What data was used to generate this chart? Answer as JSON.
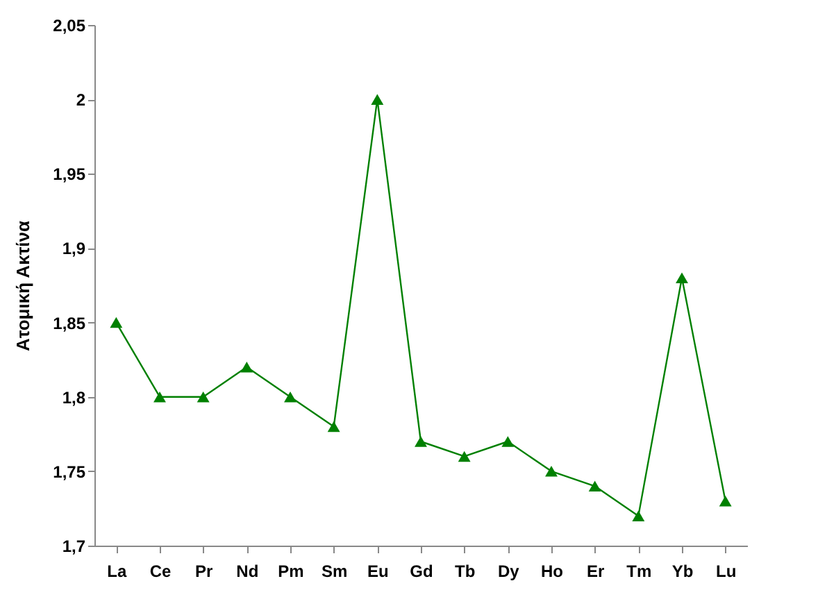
{
  "chart_data": {
    "type": "line",
    "ylabel": "Ατομική Ακτίνα",
    "categories": [
      "La",
      "Ce",
      "Pr",
      "Nd",
      "Pm",
      "Sm",
      "Eu",
      "Gd",
      "Tb",
      "Dy",
      "Ho",
      "Er",
      "Tm",
      "Yb",
      "Lu"
    ],
    "series": [
      {
        "color": "#008000",
        "values": [
          1.85,
          1.8,
          1.8,
          1.82,
          1.8,
          1.78,
          2.0,
          1.77,
          1.76,
          1.77,
          1.75,
          1.74,
          1.72,
          1.88,
          1.73
        ]
      }
    ],
    "ylim": [
      1.7,
      2.05
    ],
    "yticks": [
      {
        "value": 1.7,
        "label": "1,7"
      },
      {
        "value": 1.75,
        "label": "1,75"
      },
      {
        "value": 1.8,
        "label": "1,8"
      },
      {
        "value": 1.85,
        "label": "1,85"
      },
      {
        "value": 1.9,
        "label": "1,9"
      },
      {
        "value": 1.95,
        "label": "1,95"
      },
      2,
      {
        "value": 2.05,
        "label": "2,05"
      }
    ],
    "grid": false,
    "marker": "triangle",
    "line_style": "solid"
  }
}
